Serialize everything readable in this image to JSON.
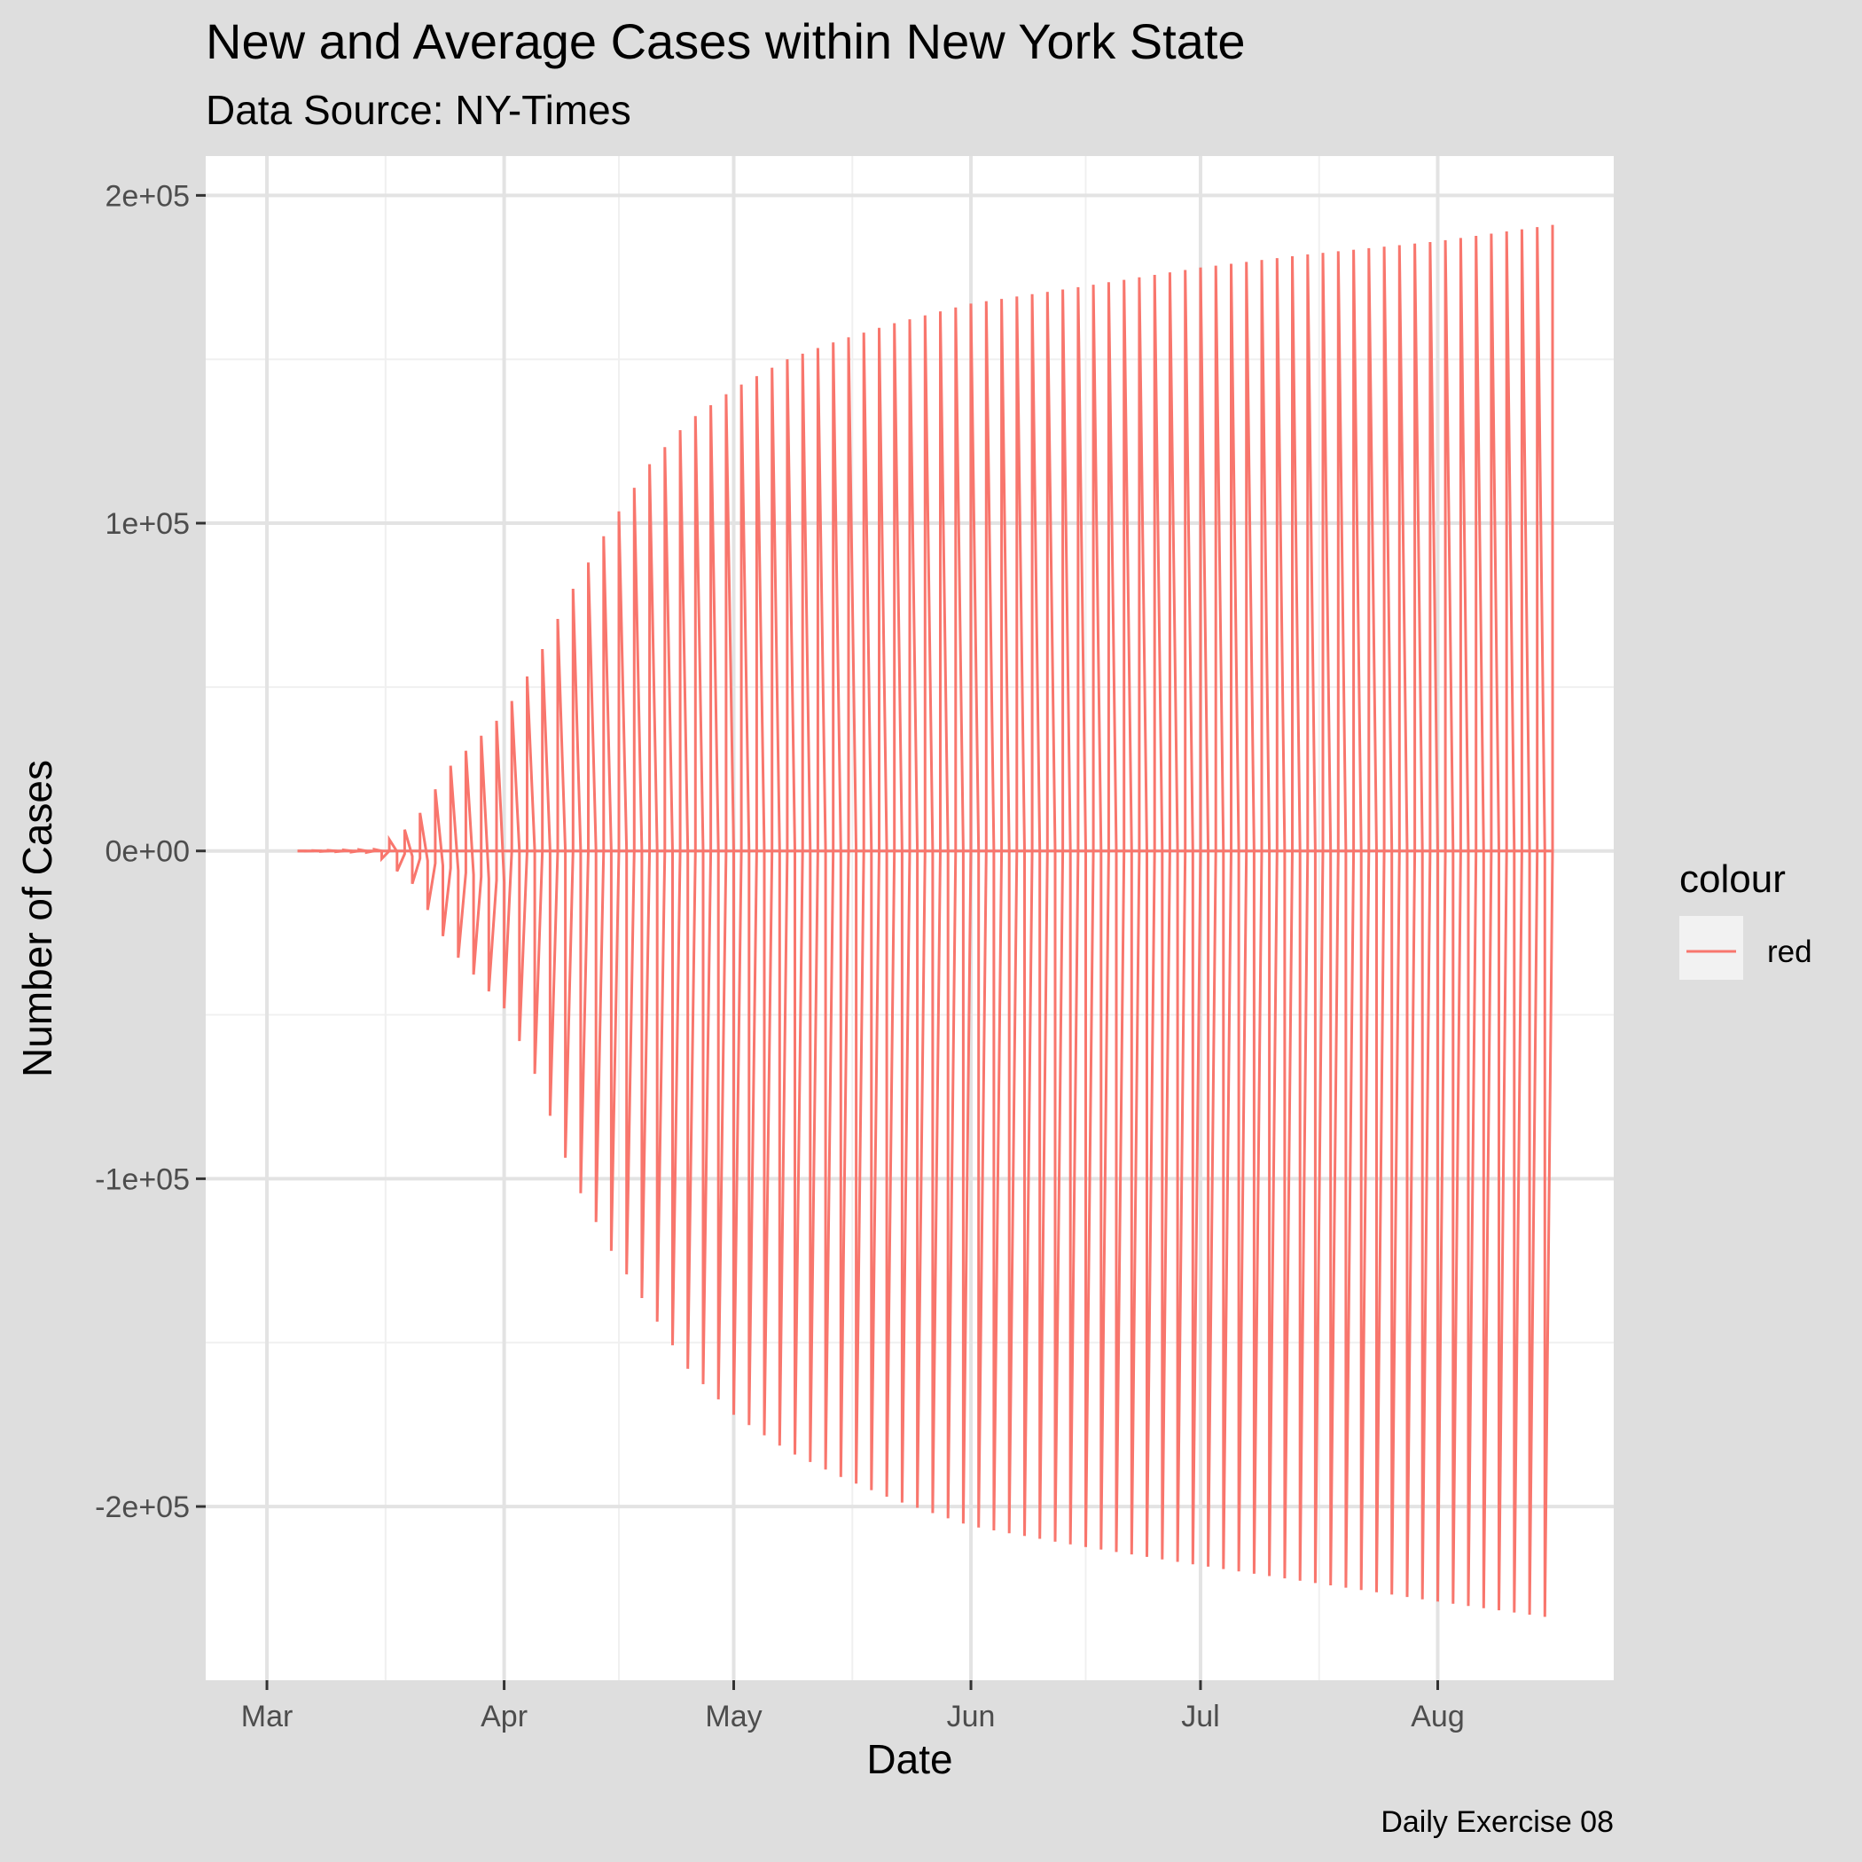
{
  "chart_data": {
    "type": "line",
    "title": "New and Average Cases within New York State",
    "subtitle": "Data Source: NY-Times",
    "xlabel": "Date",
    "ylabel": "Number of Cases",
    "caption": "Daily Exercise 08",
    "x_ticks": [
      "Mar",
      "Apr",
      "May",
      "Jun",
      "Jul",
      "Aug"
    ],
    "x_tick_dates": [
      "2020-03-01",
      "2020-04-01",
      "2020-05-01",
      "2020-06-01",
      "2020-07-01",
      "2020-08-01"
    ],
    "xlim": [
      "2020-02-22",
      "2020-08-24"
    ],
    "y_ticks": [
      "2e+05",
      "1e+05",
      "0e+00",
      "-1e+05",
      "-2e+05"
    ],
    "y_tick_values": [
      200000,
      100000,
      0,
      -100000,
      -200000
    ],
    "ylim": [
      -253000,
      212000
    ],
    "grid": true,
    "legend": {
      "title": "colour",
      "position": "right",
      "entries": [
        {
          "label": "red",
          "color": "#F8766D"
        }
      ]
    },
    "line_color": "#F8766D",
    "series": [
      {
        "name": "red",
        "x_start": "2020-03-05",
        "x_end": "2020-08-16",
        "pattern": "alternates each day between cumulative cases (upper) and negative value (lower)",
        "envelope_upper": [
          {
            "x": "2020-03-05",
            "y": 0
          },
          {
            "x": "2020-03-15",
            "y": 500
          },
          {
            "x": "2020-03-20",
            "y": 8000
          },
          {
            "x": "2020-03-25",
            "y": 26000
          },
          {
            "x": "2020-04-01",
            "y": 42000
          },
          {
            "x": "2020-04-05",
            "y": 57000
          },
          {
            "x": "2020-04-10",
            "y": 80000
          },
          {
            "x": "2020-04-15",
            "y": 100000
          },
          {
            "x": "2020-04-20",
            "y": 118000
          },
          {
            "x": "2020-04-25",
            "y": 131000
          },
          {
            "x": "2020-05-01",
            "y": 141000
          },
          {
            "x": "2020-05-08",
            "y": 150000
          },
          {
            "x": "2020-05-15",
            "y": 156000
          },
          {
            "x": "2020-05-22",
            "y": 161000
          },
          {
            "x": "2020-06-01",
            "y": 167000
          },
          {
            "x": "2020-06-15",
            "y": 172000
          },
          {
            "x": "2020-07-01",
            "y": 178000
          },
          {
            "x": "2020-07-15",
            "y": 182000
          },
          {
            "x": "2020-08-01",
            "y": 186000
          },
          {
            "x": "2020-08-16",
            "y": 191000
          }
        ],
        "envelope_lower": [
          {
            "x": "2020-03-05",
            "y": 0
          },
          {
            "x": "2020-03-15",
            "y": -500
          },
          {
            "x": "2020-03-20",
            "y": -10000
          },
          {
            "x": "2020-03-25",
            "y": -30000
          },
          {
            "x": "2020-04-01",
            "y": -48000
          },
          {
            "x": "2020-04-05",
            "y": -68000
          },
          {
            "x": "2020-04-10",
            "y": -100000
          },
          {
            "x": "2020-04-15",
            "y": -122000
          },
          {
            "x": "2020-04-20",
            "y": -140000
          },
          {
            "x": "2020-04-25",
            "y": -158000
          },
          {
            "x": "2020-05-01",
            "y": -172000
          },
          {
            "x": "2020-05-08",
            "y": -183000
          },
          {
            "x": "2020-05-15",
            "y": -191000
          },
          {
            "x": "2020-05-22",
            "y": -198000
          },
          {
            "x": "2020-06-01",
            "y": -206000
          },
          {
            "x": "2020-06-15",
            "y": -212000
          },
          {
            "x": "2020-07-01",
            "y": -218000
          },
          {
            "x": "2020-07-15",
            "y": -223000
          },
          {
            "x": "2020-08-01",
            "y": -229000
          },
          {
            "x": "2020-08-16",
            "y": -234000
          }
        ],
        "avg_dip": [
          {
            "x": "2020-03-18",
            "y": -200
          },
          {
            "x": "2020-03-22",
            "y": -3000
          },
          {
            "x": "2020-03-26",
            "y": -6000
          },
          {
            "x": "2020-03-30",
            "y": -8500
          },
          {
            "x": "2020-04-01",
            "y": -9500
          },
          {
            "x": "2020-04-02",
            "y": 0
          }
        ]
      }
    ]
  }
}
